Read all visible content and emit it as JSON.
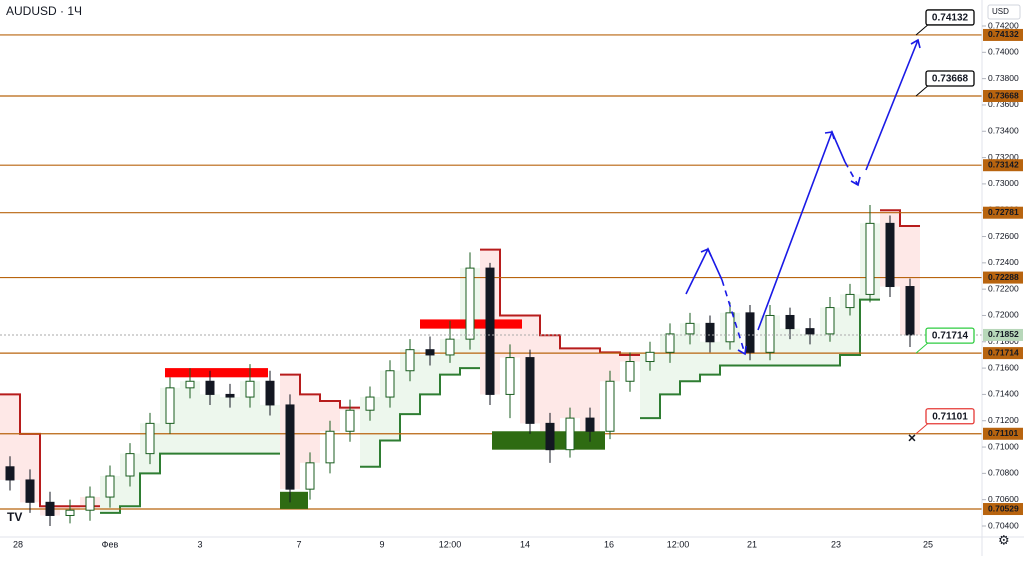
{
  "chart_data": {
    "type": "candlestick",
    "title": "AUDUSD · 1Ч",
    "currency": "USD",
    "x_labels": [
      "28",
      "Фев",
      "3",
      "7",
      "9",
      "12:00",
      "14",
      "16",
      "12:00",
      "21",
      "23",
      "25"
    ],
    "candles": [
      [
        0.7085,
        0.7093,
        0.7067,
        0.7075
      ],
      [
        0.7075,
        0.7083,
        0.705,
        0.7058
      ],
      [
        0.7058,
        0.7066,
        0.704,
        0.7048
      ],
      [
        0.7048,
        0.706,
        0.7042,
        0.7052
      ],
      [
        0.7052,
        0.707,
        0.7044,
        0.7062
      ],
      [
        0.7062,
        0.7086,
        0.7054,
        0.7078
      ],
      [
        0.7078,
        0.7103,
        0.707,
        0.7095
      ],
      [
        0.7095,
        0.7126,
        0.7087,
        0.7118
      ],
      [
        0.7118,
        0.7153,
        0.711,
        0.7145
      ],
      [
        0.7145,
        0.716,
        0.7137,
        0.715
      ],
      [
        0.715,
        0.7158,
        0.7132,
        0.714
      ],
      [
        0.714,
        0.7148,
        0.713,
        0.7138
      ],
      [
        0.7138,
        0.7163,
        0.713,
        0.715
      ],
      [
        0.715,
        0.7158,
        0.7124,
        0.7132
      ],
      [
        0.7132,
        0.714,
        0.7058,
        0.7068
      ],
      [
        0.7068,
        0.7096,
        0.706,
        0.7088
      ],
      [
        0.7088,
        0.712,
        0.708,
        0.7112
      ],
      [
        0.7112,
        0.7136,
        0.7104,
        0.7128
      ],
      [
        0.7128,
        0.7146,
        0.712,
        0.7138
      ],
      [
        0.7138,
        0.7166,
        0.713,
        0.7158
      ],
      [
        0.7158,
        0.7182,
        0.715,
        0.7174
      ],
      [
        0.7174,
        0.7184,
        0.7162,
        0.717
      ],
      [
        0.717,
        0.7196,
        0.7164,
        0.7182
      ],
      [
        0.7182,
        0.7248,
        0.7174,
        0.7236
      ],
      [
        0.7236,
        0.724,
        0.7132,
        0.714
      ],
      [
        0.714,
        0.7178,
        0.7122,
        0.7168
      ],
      [
        0.7168,
        0.7174,
        0.711,
        0.7118
      ],
      [
        0.7118,
        0.7126,
        0.7088,
        0.7098
      ],
      [
        0.7098,
        0.713,
        0.7092,
        0.7122
      ],
      [
        0.7122,
        0.713,
        0.7104,
        0.7112
      ],
      [
        0.7112,
        0.7158,
        0.7106,
        0.715
      ],
      [
        0.715,
        0.7172,
        0.7142,
        0.7165
      ],
      [
        0.7165,
        0.718,
        0.7158,
        0.7172
      ],
      [
        0.7172,
        0.7194,
        0.7164,
        0.7186
      ],
      [
        0.7186,
        0.7202,
        0.7178,
        0.7194
      ],
      [
        0.7194,
        0.72,
        0.7172,
        0.718
      ],
      [
        0.718,
        0.721,
        0.7174,
        0.7202
      ],
      [
        0.7202,
        0.7208,
        0.7166,
        0.7172
      ],
      [
        0.7172,
        0.7208,
        0.7166,
        0.72
      ],
      [
        0.72,
        0.7206,
        0.7182,
        0.719
      ],
      [
        0.719,
        0.7198,
        0.7178,
        0.7186
      ],
      [
        0.7186,
        0.7214,
        0.718,
        0.7206
      ],
      [
        0.7206,
        0.7224,
        0.72,
        0.7216
      ],
      [
        0.7216,
        0.7284,
        0.721,
        0.727
      ],
      [
        0.727,
        0.7276,
        0.7214,
        0.7222
      ],
      [
        0.7222,
        0.7228,
        0.7176,
        0.71852
      ]
    ],
    "up_color": "#1b5e20",
    "down_color": "#131722",
    "trend_down": [
      0.714,
      0.711,
      0.7055,
      0.7055,
      0.7055,
      null,
      null,
      null,
      null,
      null,
      null,
      null,
      null,
      null,
      0.7155,
      0.714,
      0.7135,
      0.713,
      null,
      null,
      null,
      null,
      null,
      null,
      0.725,
      0.72,
      0.72,
      0.7185,
      0.7175,
      0.7175,
      0.7172,
      0.717,
      null,
      null,
      null,
      null,
      null,
      null,
      null,
      null,
      null,
      null,
      null,
      null,
      0.728,
      0.7268
    ],
    "trend_up": [
      null,
      null,
      null,
      null,
      null,
      0.705,
      0.7055,
      0.708,
      0.7095,
      0.7095,
      0.7095,
      0.7095,
      0.7095,
      0.7095,
      null,
      null,
      null,
      null,
      0.7085,
      0.7105,
      0.7125,
      0.714,
      0.7155,
      0.716,
      null,
      null,
      null,
      null,
      null,
      null,
      null,
      null,
      0.7122,
      0.714,
      0.715,
      0.7155,
      0.7162,
      0.7162,
      0.7162,
      0.7162,
      0.7162,
      0.7162,
      0.717,
      0.7212,
      null,
      null
    ],
    "trend_down_color": "#b71c1c",
    "trend_up_color": "#2e7d32",
    "levels": [
      0.74132,
      0.73668,
      0.73142,
      0.72781,
      0.72288,
      0.71714,
      0.71101,
      0.70529
    ],
    "level_color": "#b8640f",
    "last_price": 0.71852,
    "zones": [
      {
        "from": 0.716,
        "to": 0.7153,
        "color": "#ff0000"
      },
      {
        "from": 0.7197,
        "to": 0.719,
        "color": "#ff0000"
      },
      {
        "from": 0.7112,
        "to": 0.7098,
        "color": "#2e6b12"
      },
      {
        "from": 0.7066,
        "to": 0.7053,
        "color": "#2e6b12"
      }
    ],
    "callouts": [
      {
        "value": 0.74132,
        "color": "#000000"
      },
      {
        "value": 0.73668,
        "color": "#000000"
      },
      {
        "value": 0.71714,
        "color": "#2ecc40"
      },
      {
        "value": 0.71101,
        "color": "#e53935"
      }
    ],
    "ylim": [
      0.704,
      0.742
    ],
    "yticks": [
      {
        "value": 0.704,
        "label": "0.70400"
      },
      {
        "value": 0.706,
        "label": "0.70600"
      },
      {
        "value": 0.708,
        "label": "0.70800"
      },
      {
        "value": 0.71,
        "label": "0.71000"
      },
      {
        "value": 0.712,
        "label": "0.71200"
      },
      {
        "value": 0.714,
        "label": "0.71400"
      },
      {
        "value": 0.716,
        "label": "0.71600"
      },
      {
        "value": 0.718,
        "label": "0.71800"
      },
      {
        "value": 0.72,
        "label": "0.72000"
      },
      {
        "value": 0.722,
        "label": "0.72200"
      },
      {
        "value": 0.724,
        "label": "0.72400"
      },
      {
        "value": 0.726,
        "label": "0.72600"
      },
      {
        "value": 0.728,
        "label": "0.72800"
      },
      {
        "value": 0.73,
        "label": "0.73000"
      },
      {
        "value": 0.732,
        "label": "0.73200"
      },
      {
        "value": 0.734,
        "label": "0.73400"
      },
      {
        "value": 0.736,
        "label": "0.73600"
      },
      {
        "value": 0.738,
        "label": "0.73800"
      },
      {
        "value": 0.74,
        "label": "0.74000"
      },
      {
        "value": 0.742,
        "label": "0.74200"
      }
    ]
  }
}
